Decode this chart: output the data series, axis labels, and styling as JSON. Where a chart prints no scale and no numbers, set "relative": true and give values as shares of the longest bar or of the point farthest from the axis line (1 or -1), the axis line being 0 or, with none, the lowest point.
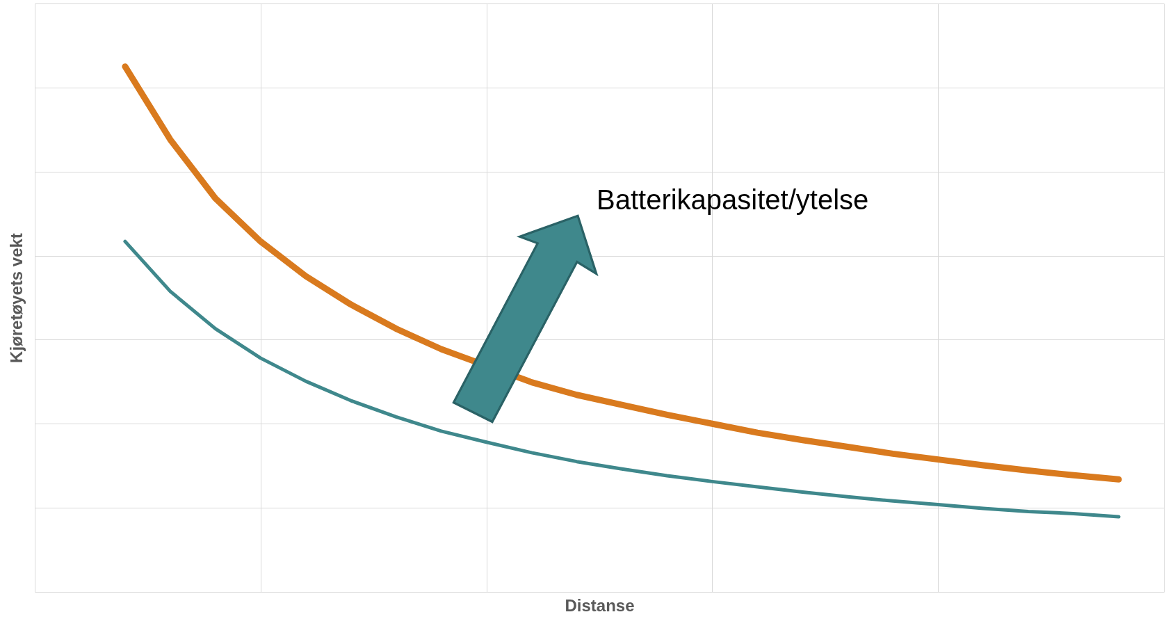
{
  "chart_data": {
    "type": "line",
    "relative": true,
    "xlabel": "Distanse",
    "ylabel": "Kjøretøyets vekt",
    "grid": true,
    "categories": [
      null,
      null,
      null,
      null,
      null,
      null,
      null,
      null,
      null,
      null,
      null,
      null,
      null,
      null,
      null,
      null,
      null,
      null,
      null,
      null,
      null,
      null,
      null
    ],
    "series": [
      {
        "color": "#d97a1e",
        "values": [
          1,
          0.861,
          0.749,
          0.667,
          0.601,
          0.547,
          0.501,
          0.462,
          null,
          0.399,
          0.375,
          0.356,
          0.337,
          0.32,
          0.303,
          0.289,
          0.276,
          0.263,
          0.252,
          0.241,
          0.231,
          0.222,
          0.214
        ]
      },
      {
        "color": "#3f888c",
        "values": [
          0.667,
          0.572,
          0.501,
          0.445,
          0.401,
          0.364,
          0.333,
          0.306,
          0.285,
          0.265,
          0.248,
          0.234,
          0.221,
          0.21,
          0.2,
          0.19,
          0.181,
          0.173,
          0.166,
          0.159,
          0.153,
          0.149,
          0.143
        ]
      }
    ],
    "annotations": [
      "Batterikapasitet/ytelse"
    ]
  }
}
